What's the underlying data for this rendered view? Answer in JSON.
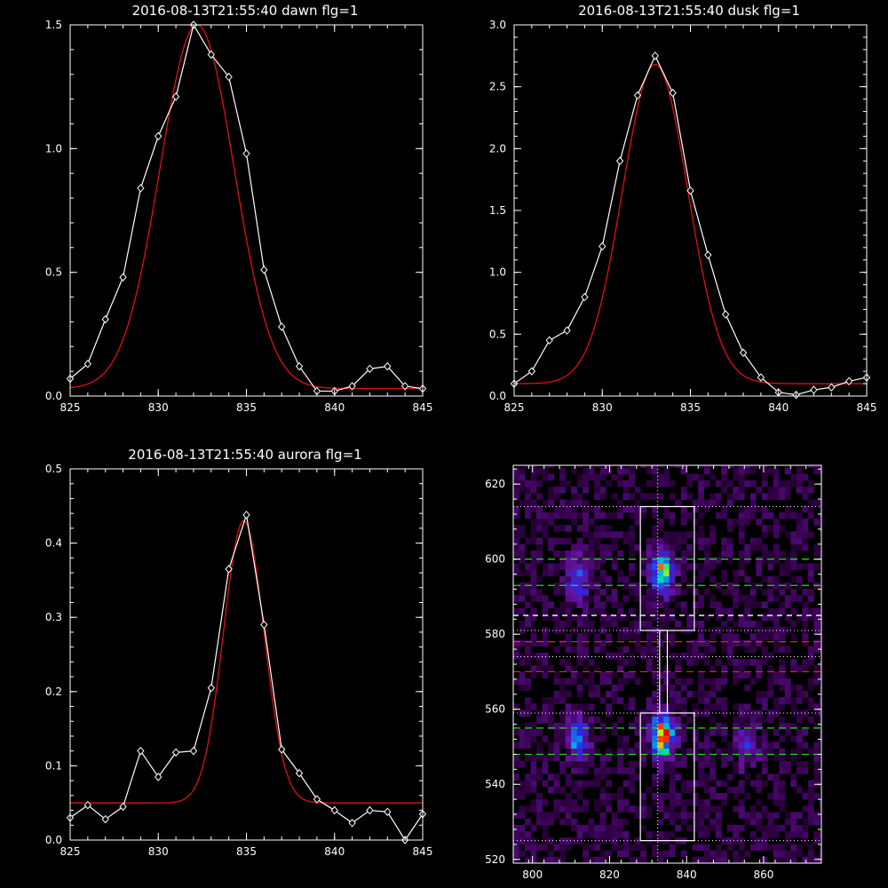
{
  "panels": [
    {
      "title": "2016-08-13T21:55:40 dawn flg=1",
      "xlim": [
        825,
        845
      ],
      "ylim": [
        0,
        1.5
      ],
      "xticks": [
        "825",
        "830",
        "835",
        "840",
        "845"
      ],
      "xtick_values": [
        825,
        830,
        835,
        840,
        845
      ],
      "yticks": [
        "0.0",
        "0.5",
        "1.0",
        "1.5"
      ],
      "ytick_values": [
        0,
        0.5,
        1.0,
        1.5
      ]
    },
    {
      "title": "2016-08-13T21:55:40 dusk flg=1",
      "xlim": [
        825,
        845
      ],
      "ylim": [
        0,
        3.0
      ],
      "xticks": [
        "825",
        "830",
        "835",
        "840",
        "845"
      ],
      "xtick_values": [
        825,
        830,
        835,
        840,
        845
      ],
      "yticks": [
        "0.0",
        "0.5",
        "1.0",
        "1.5",
        "2.0",
        "2.5",
        "3.0"
      ],
      "ytick_values": [
        0,
        0.5,
        1.0,
        1.5,
        2.0,
        2.5,
        3.0
      ]
    },
    {
      "title": "2016-08-13T21:55:40 aurora flg=1",
      "xlim": [
        825,
        845
      ],
      "ylim": [
        0,
        0.5
      ],
      "xticks": [
        "825",
        "830",
        "835",
        "840",
        "845"
      ],
      "xtick_values": [
        825,
        830,
        835,
        840,
        845
      ],
      "yticks": [
        "0.0",
        "0.1",
        "0.2",
        "0.3",
        "0.4",
        "0.5"
      ],
      "ytick_values": [
        0,
        0.1,
        0.2,
        0.3,
        0.4,
        0.5
      ]
    },
    {
      "title": "",
      "xlim": [
        795,
        875
      ],
      "ylim": [
        519,
        625
      ],
      "xticks": [
        "800",
        "820",
        "840",
        "860"
      ],
      "xtick_values": [
        800,
        820,
        840,
        860
      ],
      "yticks": [
        "520",
        "540",
        "560",
        "580",
        "600",
        "620"
      ],
      "ytick_values": [
        520,
        540,
        560,
        580,
        600,
        620
      ]
    }
  ],
  "colors": {
    "background": "#000000",
    "data_line": "#ffffff",
    "fit_line": "#dd1111",
    "green_dash": "#22dd22",
    "red_dash": "#ee2222",
    "white_dash": "#ffffff"
  },
  "chart_data": [
    {
      "type": "line",
      "title": "2016-08-13T21:55:40 dawn flg=1",
      "xlim": [
        825,
        845
      ],
      "ylim": [
        0,
        1.5
      ],
      "series": [
        {
          "style": "white line with diamond markers",
          "x": [
            825,
            826,
            827,
            828,
            829,
            830,
            831,
            832,
            833,
            834,
            835,
            836,
            837,
            838,
            839,
            840,
            841,
            842,
            843,
            844,
            845
          ],
          "y": [
            0.07,
            0.13,
            0.31,
            0.48,
            0.84,
            1.05,
            1.21,
            1.5,
            1.38,
            1.29,
            0.98,
            0.51,
            0.28,
            0.12,
            0.02,
            0.02,
            0.04,
            0.11,
            0.12,
            0.04,
            0.03
          ]
        },
        {
          "style": "red gaussian fit",
          "fit": {
            "amplitude": 1.47,
            "center": 832.2,
            "sigma": 2.1,
            "baseline": 0.03
          }
        }
      ]
    },
    {
      "type": "line",
      "title": "2016-08-13T21:55:40 dusk flg=1",
      "xlim": [
        825,
        845
      ],
      "ylim": [
        0,
        3.0
      ],
      "series": [
        {
          "style": "white line with diamond markers",
          "x": [
            825,
            826,
            827,
            828,
            829,
            830,
            831,
            832,
            833,
            834,
            835,
            836,
            837,
            838,
            839,
            840,
            841,
            842,
            843,
            844,
            845
          ],
          "y": [
            0.1,
            0.2,
            0.45,
            0.53,
            0.8,
            1.21,
            1.9,
            2.43,
            2.75,
            2.45,
            1.66,
            1.14,
            0.66,
            0.35,
            0.15,
            0.03,
            0.01,
            0.05,
            0.07,
            0.12,
            0.15
          ]
        },
        {
          "style": "red gaussian fit",
          "fit": {
            "amplitude": 2.58,
            "center": 833.0,
            "sigma": 1.85,
            "baseline": 0.1
          }
        }
      ]
    },
    {
      "type": "line",
      "title": "2016-08-13T21:55:40 aurora flg=1",
      "xlim": [
        825,
        845
      ],
      "ylim": [
        0,
        0.5
      ],
      "series": [
        {
          "style": "white line with diamond markers",
          "x": [
            825,
            826,
            827,
            828,
            829,
            830,
            831,
            832,
            833,
            834,
            835,
            836,
            837,
            838,
            839,
            840,
            841,
            842,
            843,
            844,
            845
          ],
          "y": [
            0.03,
            0.047,
            0.028,
            0.045,
            0.12,
            0.085,
            0.118,
            0.12,
            0.205,
            0.365,
            0.438,
            0.29,
            0.122,
            0.09,
            0.055,
            0.04,
            0.023,
            0.04,
            0.038,
            0.0,
            0.035
          ]
        },
        {
          "style": "red gaussian fit",
          "fit": {
            "amplitude": 0.38,
            "center": 834.85,
            "sigma": 1.15,
            "baseline": 0.05
          }
        }
      ]
    },
    {
      "type": "heatmap",
      "xlim": [
        795,
        875
      ],
      "ylim": [
        519,
        625
      ],
      "hotspots": [
        {
          "x": 811,
          "y": 594,
          "intensity": 0.45
        },
        {
          "x": 811,
          "y": 552,
          "intensity": 0.55
        },
        {
          "x": 833,
          "y": 596,
          "intensity": 0.75
        },
        {
          "x": 833,
          "y": 552,
          "intensity": 1.0
        },
        {
          "x": 855,
          "y": 550,
          "intensity": 0.3
        }
      ],
      "boxes": [
        {
          "x0": 828,
          "x1": 842,
          "y0": 581,
          "y1": 614
        },
        {
          "x0": 828,
          "x1": 842,
          "y0": 525,
          "y1": 559
        },
        {
          "x0": 833,
          "x1": 835,
          "y0": 559,
          "y1": 581
        }
      ],
      "vertical_dotted_x": 832.5,
      "horizontal_lines": [
        {
          "y": 614,
          "style": "white-dotted"
        },
        {
          "y": 581,
          "style": "white-dotted"
        },
        {
          "y": 574,
          "style": "white-dotted"
        },
        {
          "y": 559,
          "style": "white-dotted"
        },
        {
          "y": 525,
          "style": "white-dotted"
        },
        {
          "y": 600,
          "style": "green-dashed"
        },
        {
          "y": 593,
          "style": "green-dashed"
        },
        {
          "y": 555,
          "style": "green-dashed"
        },
        {
          "y": 548,
          "style": "green-dashed"
        },
        {
          "y": 585,
          "style": "white-dashed"
        },
        {
          "y": 578,
          "style": "red-dashed"
        },
        {
          "y": 570,
          "style": "red-dashed"
        }
      ]
    }
  ]
}
